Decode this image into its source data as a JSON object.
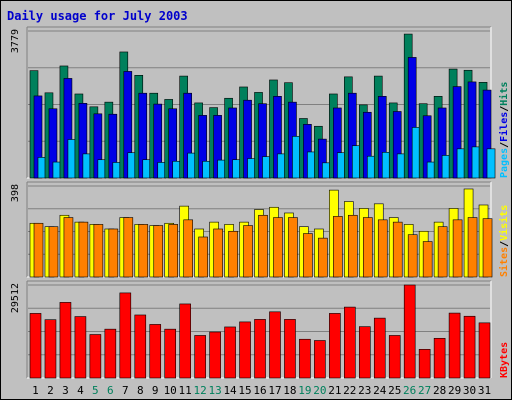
{
  "page": {
    "title": "Daily usage for July 2003"
  },
  "colors": {
    "background": "#c0c0c0",
    "plot": "#c0c0c0",
    "hits": "#00805c",
    "files": "#0000e6",
    "pages": "#00c0ff",
    "visits": "#ffff00",
    "sites": "#ff8000",
    "kbytes": "#ff0000",
    "weekday_label": "#000000",
    "weekend_label": "#00805c",
    "axis_label": "#000000"
  },
  "chart_data": {
    "type": "bar",
    "title": "Daily usage for July 2003",
    "categories": [
      "1",
      "2",
      "3",
      "4",
      "5",
      "6",
      "7",
      "8",
      "9",
      "10",
      "11",
      "12",
      "13",
      "14",
      "15",
      "16",
      "17",
      "18",
      "19",
      "20",
      "21",
      "22",
      "23",
      "24",
      "25",
      "26",
      "27",
      "28",
      "29",
      "30",
      "31"
    ],
    "weekend_days": [
      "5",
      "6",
      "12",
      "13",
      "19",
      "20",
      "26",
      "27"
    ],
    "panels": [
      {
        "id": "hits_files_pages",
        "max_label": "3779",
        "ylim": [
          0,
          3779
        ],
        "legend": [
          {
            "text": "Pages",
            "color": "#00c0ff"
          },
          {
            "text": "/",
            "color": "#000000"
          },
          {
            "text": "Files",
            "color": "#0000e6"
          },
          {
            "text": "/",
            "color": "#000000"
          },
          {
            "text": "Hits",
            "color": "#00805c"
          }
        ],
        "series": [
          {
            "name": "Hits",
            "color": "#00805c",
            "values": [
              2760,
              2190,
              2880,
              2160,
              1830,
              1950,
              3240,
              2640,
              2180,
              2020,
              2620,
              1930,
              1810,
              2050,
              2340,
              2200,
              2520,
              2450,
              1530,
              1330,
              2160,
              2600,
              1880,
              2620,
              1930,
              3700,
              1910,
              2100,
              2800,
              2770,
              2460
            ]
          },
          {
            "name": "Files",
            "color": "#0000e6",
            "values": [
              2110,
              1780,
              2560,
              1920,
              1650,
              1640,
              2740,
              2180,
              1900,
              1780,
              2180,
              1610,
              1610,
              1800,
              2000,
              1910,
              2100,
              1950,
              1380,
              1000,
              1800,
              2180,
              1690,
              2100,
              1710,
              3100,
              1600,
              1800,
              2350,
              2470,
              2260
            ]
          },
          {
            "name": "Pages",
            "color": "#00c0ff",
            "values": [
              530,
              410,
              990,
              620,
              470,
              400,
              650,
              470,
              400,
              430,
              640,
              430,
              460,
              470,
              500,
              550,
              620,
              1070,
              670,
              390,
              650,
              830,
              560,
              660,
              620,
              1300,
              410,
              580,
              750,
              800,
              750
            ]
          }
        ]
      },
      {
        "id": "visits_sites",
        "max_label": "398",
        "ylim": [
          0,
          398
        ],
        "legend": [
          {
            "text": "Sites",
            "color": "#ff8000"
          },
          {
            "text": "/",
            "color": "#000000"
          },
          {
            "text": "Visits",
            "color": "#ffff00"
          }
        ],
        "series": [
          {
            "name": "Visits",
            "color": "#ffff00",
            "values": [
              235,
              220,
              270,
              240,
              230,
              210,
              260,
              230,
              225,
              235,
              310,
              210,
              240,
              230,
              240,
              295,
              305,
              280,
              220,
              210,
              380,
              330,
              300,
              320,
              260,
              230,
              200,
              240,
              300,
              385,
              315
            ]
          },
          {
            "name": "Sites",
            "color": "#ff8000",
            "values": [
              235,
              220,
              260,
              240,
              230,
              210,
              260,
              230,
              225,
              230,
              250,
              175,
              210,
              200,
              225,
              270,
              260,
              260,
              190,
              170,
              265,
              270,
              260,
              250,
              240,
              185,
              155,
              220,
              250,
              260,
              255
            ]
          }
        ]
      },
      {
        "id": "kbytes",
        "max_label": "29512",
        "ylim": [
          0,
          29512
        ],
        "legend": [
          {
            "text": "KBytes",
            "color": "#ff0000"
          }
        ],
        "series": [
          {
            "name": "KBytes",
            "color": "#ff0000",
            "values": [
              20500,
              18500,
              24000,
              19500,
              13800,
              15500,
              27000,
              20000,
              17000,
              15500,
              23500,
              13500,
              14600,
              16200,
              17800,
              18600,
              21000,
              18600,
              12300,
              11900,
              20500,
              22500,
              16300,
              19000,
              13500,
              29512,
              9100,
              12600,
              20600,
              19600,
              17500
            ]
          }
        ]
      }
    ]
  }
}
